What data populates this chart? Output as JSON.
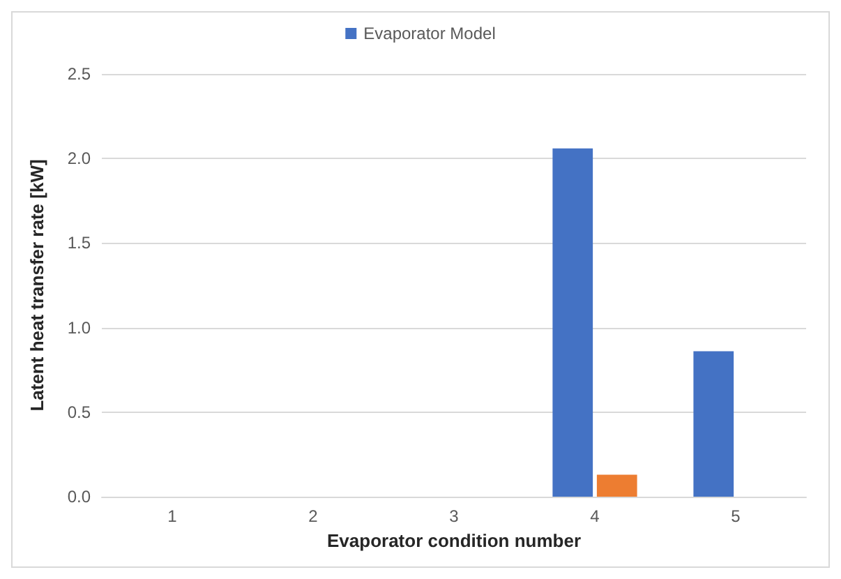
{
  "chart_data": {
    "type": "bar",
    "xlabel": "Evaporator condition number",
    "ylabel": "Latent heat transfer rate [kW]",
    "categories": [
      "1",
      "2",
      "3",
      "4",
      "5"
    ],
    "series": [
      {
        "name": "Evaporator Model",
        "color": "#4472c4",
        "values": [
          0,
          0,
          0,
          2.06,
          0.86
        ]
      },
      {
        "color": "#ed7d31",
        "values": [
          0,
          0,
          0,
          0.13,
          0
        ]
      }
    ],
    "ylim": [
      0,
      2.5
    ],
    "yticks": [
      {
        "value": 0,
        "label": "0.0"
      },
      {
        "value": 0.5,
        "label": "0.5"
      },
      {
        "value": 1,
        "label": "1.0"
      },
      {
        "value": 1.5,
        "label": "1.5"
      },
      {
        "value": 2,
        "label": "2.0"
      },
      {
        "value": 2.5,
        "label": "2.5"
      }
    ],
    "grid": "y",
    "legend": "top"
  }
}
